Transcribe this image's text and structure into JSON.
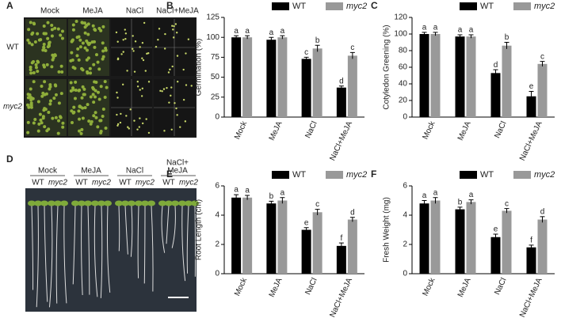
{
  "panels": {
    "A": {
      "letter": "A",
      "columns": [
        "Mock",
        "MeJA",
        "NaCl",
        "NaCl+MeJA"
      ],
      "rows": [
        "WT",
        "myc2"
      ]
    },
    "D": {
      "letter": "D",
      "groups": [
        "Mock",
        "MeJA",
        "NaCl",
        "NaCl+",
        "MeJA"
      ],
      "genotypes": [
        "WT",
        "myc2",
        "WT",
        "myc2",
        "WT",
        "myc2",
        "WT",
        "myc2"
      ]
    }
  },
  "chart_data": [
    {
      "type": "bar",
      "panel": "B",
      "ylabel": "Germination (%)",
      "categories": [
        "Mock",
        "MeJA",
        "NaCl",
        "NaCl+MeJA"
      ],
      "ylim": [
        0,
        125
      ],
      "yticks": [
        0,
        25,
        50,
        75,
        100,
        125
      ],
      "series": [
        {
          "name": "WT",
          "color": "#000000",
          "values": [
            100,
            97,
            73,
            37
          ],
          "errors": [
            2,
            3,
            2,
            2
          ],
          "letters": [
            "a",
            "a",
            "c",
            "d"
          ]
        },
        {
          "name": "myc2",
          "color": "#999999",
          "values": [
            100,
            100,
            86,
            77
          ],
          "errors": [
            2,
            2,
            4,
            4
          ],
          "letters": [
            "a",
            "a",
            "b",
            "c"
          ]
        }
      ]
    },
    {
      "type": "bar",
      "panel": "C",
      "ylabel": "Cotyledon Greening (%)",
      "categories": [
        "Mock",
        "MeJA",
        "NaCl",
        "NaCl+MeJA"
      ],
      "ylim": [
        0,
        120
      ],
      "yticks": [
        0,
        20,
        40,
        60,
        80,
        100,
        120
      ],
      "series": [
        {
          "name": "WT",
          "color": "#000000",
          "values": [
            100,
            97,
            53,
            25
          ],
          "errors": [
            2,
            2,
            4,
            6
          ],
          "letters": [
            "a",
            "a",
            "d",
            "e"
          ]
        },
        {
          "name": "myc2",
          "color": "#999999",
          "values": [
            100,
            97,
            86,
            64
          ],
          "errors": [
            2,
            2,
            4,
            3
          ],
          "letters": [
            "a",
            "a",
            "b",
            "c"
          ]
        }
      ]
    },
    {
      "type": "bar",
      "panel": "E",
      "ylabel": "Root Length (cm)",
      "categories": [
        "Mock",
        "MeJA",
        "NaCl",
        "NaCl+MeJA"
      ],
      "ylim": [
        0,
        6
      ],
      "yticks": [
        0,
        2,
        4,
        6
      ],
      "series": [
        {
          "name": "WT",
          "color": "#000000",
          "values": [
            5.2,
            4.8,
            3.0,
            1.9
          ],
          "errors": [
            0.2,
            0.15,
            0.15,
            0.2
          ],
          "letters": [
            "a",
            "b",
            "e",
            "f"
          ]
        },
        {
          "name": "myc2",
          "color": "#999999",
          "values": [
            5.2,
            5.0,
            4.2,
            3.7
          ],
          "errors": [
            0.15,
            0.2,
            0.2,
            0.15
          ],
          "letters": [
            "a",
            "a",
            "c",
            "d"
          ]
        }
      ]
    },
    {
      "type": "bar",
      "panel": "F",
      "ylabel": "Fresh Weight (mg)",
      "categories": [
        "Mock",
        "MeJA",
        "NaCl",
        "NaCl+MeJA"
      ],
      "ylim": [
        0,
        6
      ],
      "yticks": [
        0,
        2,
        4,
        6
      ],
      "series": [
        {
          "name": "WT",
          "color": "#000000",
          "values": [
            4.8,
            4.4,
            2.5,
            1.8
          ],
          "errors": [
            0.2,
            0.15,
            0.2,
            0.15
          ],
          "letters": [
            "a",
            "b",
            "e",
            "f"
          ]
        },
        {
          "name": "myc2",
          "color": "#999999",
          "values": [
            5.0,
            4.9,
            4.3,
            3.7
          ],
          "errors": [
            0.2,
            0.15,
            0.15,
            0.2
          ],
          "letters": [
            "a",
            "a",
            "c",
            "d"
          ]
        }
      ]
    }
  ]
}
